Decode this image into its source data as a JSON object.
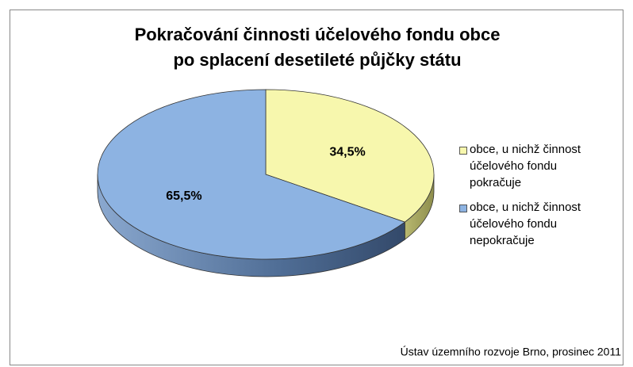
{
  "chart_data": {
    "type": "pie",
    "title": [
      "Pokračování činnosti účelového fondu obce",
      "po splacení desetileté půjčky státu"
    ],
    "categories": [
      "obce, u nichž činnost účelového fondu pokračuje",
      "obce, u nichž činnost účelového fondu nepokračuje"
    ],
    "values": [
      34.5,
      65.5
    ],
    "value_labels": [
      "34,5%",
      "65,5%"
    ],
    "colors": [
      "#f7f7ad",
      "#8db3e2"
    ],
    "legend": "right",
    "source": "Ústav územního rozvoje Brno, prosinec 2011"
  }
}
